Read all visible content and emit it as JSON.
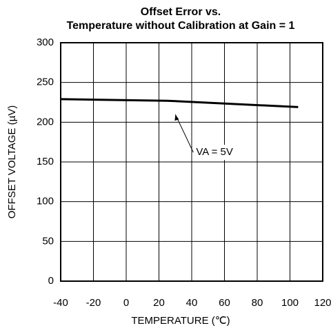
{
  "chart_data": {
    "type": "line",
    "title_lines": [
      "Offset Error vs.",
      "Temperature without Calibration at Gain = 1"
    ],
    "x_label": "TEMPERATURE (℃)",
    "y_label": "OFFSET VOLTAGE (µV)",
    "x": [
      -40,
      25,
      105
    ],
    "series": [
      {
        "name": "VA = 5V",
        "color": "#000000",
        "values": [
          229,
          227,
          219
        ]
      }
    ],
    "xlim": [
      -40,
      120
    ],
    "xticks": [
      -40,
      -20,
      0,
      20,
      40,
      60,
      80,
      100,
      120
    ],
    "ylim": [
      0,
      300
    ],
    "yticks": [
      0,
      50,
      100,
      150,
      200,
      250,
      300
    ],
    "grid": true
  }
}
